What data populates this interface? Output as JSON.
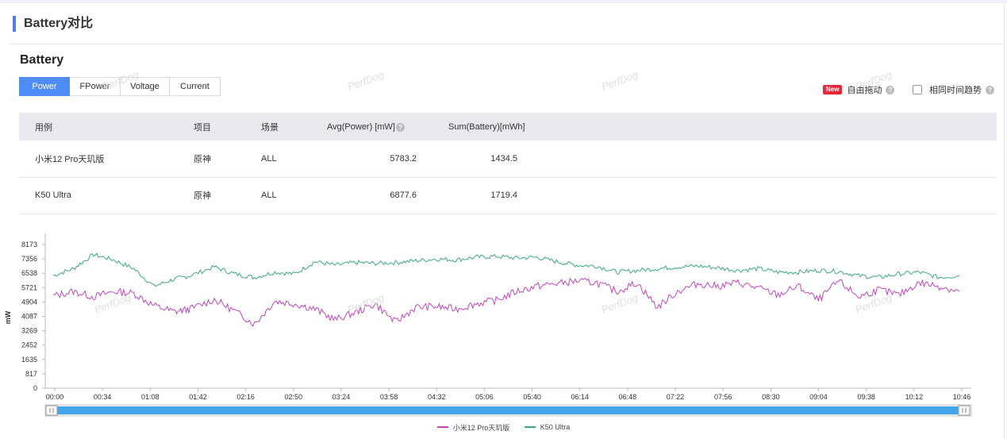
{
  "page_title": "Battery对比",
  "section_title": "Battery",
  "tabs": [
    {
      "label": "Power",
      "active": true
    },
    {
      "label": "FPower",
      "active": false
    },
    {
      "label": "Voltage",
      "active": false
    },
    {
      "label": "Current",
      "active": false
    }
  ],
  "controls": {
    "new_badge": "New",
    "drag_label": "自由拖动",
    "same_time_label": "相同时间趋势",
    "same_time_checked": false
  },
  "watermark": "PerfDog",
  "table": {
    "headers": [
      "用例",
      "项目",
      "场景",
      "Avg(Power) [mW]",
      "Sum(Battery)[mWh]"
    ],
    "rows": [
      [
        "小米12 Pro天玑版",
        "原神",
        "ALL",
        "5783.2",
        "1434.5"
      ],
      [
        "K50 Ultra",
        "原神",
        "ALL",
        "6877.6",
        "1719.4"
      ]
    ]
  },
  "chart_data": {
    "type": "line",
    "ylabel": "mW",
    "y_ticks": [
      0,
      817,
      1635,
      2452,
      3269,
      4087,
      4904,
      5721,
      6538,
      7356,
      8173
    ],
    "x_ticks": [
      "00:00",
      "00:34",
      "01:08",
      "01:42",
      "02:16",
      "02:50",
      "03:24",
      "03:58",
      "04:32",
      "05:06",
      "05:40",
      "06:14",
      "06:48",
      "07:22",
      "07:56",
      "08:30",
      "09:04",
      "09:38",
      "10:12",
      "10:46"
    ],
    "x_range_seconds": [
      0,
      678
    ],
    "series": [
      {
        "name": "小米12 Pro天玑版",
        "color": "#c644c0",
        "x": [
          0,
          15,
          30,
          45,
          60,
          75,
          90,
          102,
          120,
          135,
          150,
          165,
          180,
          195,
          210,
          225,
          240,
          255,
          270,
          285,
          300,
          315,
          330,
          345,
          360,
          375,
          390,
          405,
          420,
          435,
          450,
          465,
          480,
          495,
          510,
          525,
          540,
          555,
          570,
          585,
          600,
          615,
          630,
          645,
          660,
          675
        ],
        "y": [
          5250,
          5500,
          5200,
          5500,
          5400,
          4700,
          4350,
          4500,
          5050,
          4400,
          3650,
          4950,
          4800,
          4500,
          3900,
          4300,
          4800,
          3750,
          4600,
          4650,
          4500,
          4800,
          5000,
          5500,
          5800,
          5950,
          6100,
          6000,
          5500,
          6000,
          4600,
          5500,
          5950,
          5800,
          6000,
          5700,
          5300,
          5800,
          5000,
          6100,
          5200,
          5600,
          5300,
          6000,
          5800,
          5500
        ]
      },
      {
        "name": "K50 Ultra",
        "color": "#3aaa7b",
        "x": [
          0,
          15,
          30,
          45,
          60,
          75,
          90,
          102,
          120,
          135,
          150,
          165,
          180,
          195,
          210,
          225,
          240,
          255,
          270,
          285,
          300,
          315,
          330,
          345,
          360,
          375,
          390,
          405,
          420,
          435,
          450,
          465,
          480,
          495,
          510,
          525,
          540,
          555,
          570,
          585,
          600,
          615,
          630,
          645,
          660,
          675
        ],
        "y": [
          6400,
          6800,
          7600,
          7300,
          6800,
          5800,
          6200,
          6400,
          6900,
          6500,
          6300,
          6600,
          6500,
          7200,
          7000,
          7150,
          7100,
          7150,
          7250,
          7350,
          7300,
          7450,
          7500,
          7400,
          7450,
          7200,
          7000,
          6950,
          6600,
          6700,
          6800,
          6900,
          6950,
          6850,
          6700,
          6800,
          6600,
          6600,
          6700,
          6650,
          6400,
          6300,
          6500,
          6600,
          6300,
          6400
        ]
      }
    ]
  }
}
